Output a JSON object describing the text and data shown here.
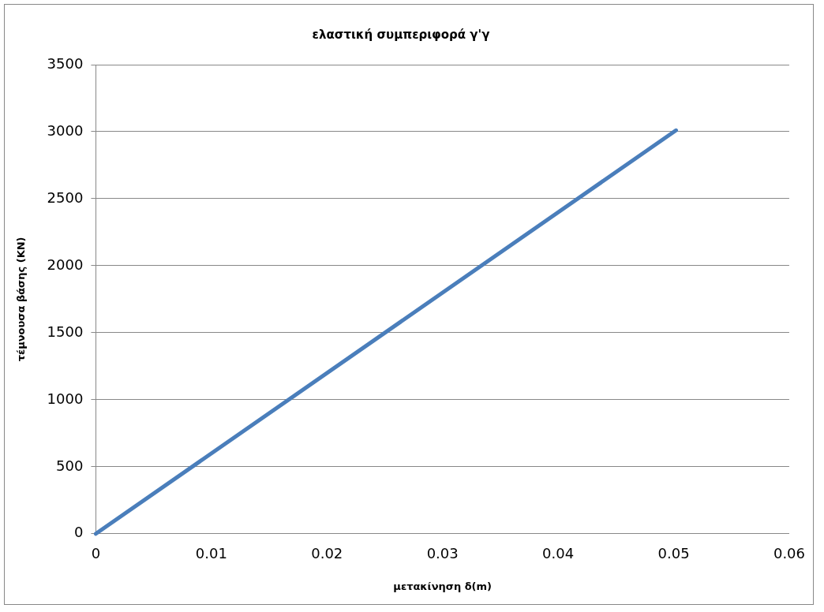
{
  "chart_data": {
    "type": "line",
    "title": "ελαστική συμπεριφορά γ'γ",
    "xlabel": "μετακίνηση δ(m)",
    "ylabel": "τέμνουσα βάσης (KN)",
    "series": [
      {
        "color": "#4a7ebb",
        "x": [
          0,
          0.0502
        ],
        "values": [
          0,
          3010
        ]
      }
    ],
    "xlim": [
      0,
      0.06
    ],
    "xticks": [
      0,
      0.01,
      0.02,
      0.03,
      0.04,
      0.05,
      0.06
    ],
    "ylim": [
      0,
      3500
    ],
    "yticks": [
      0,
      500,
      1000,
      1500,
      2000,
      2500,
      3000,
      3500
    ],
    "grid": "y",
    "legend": false,
    "marker": "none",
    "line_style": "solid"
  }
}
